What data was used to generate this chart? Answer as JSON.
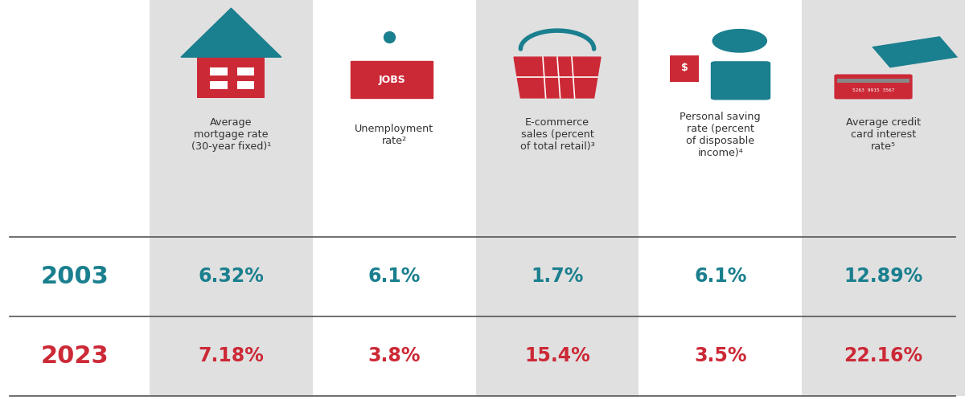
{
  "columns": [
    {
      "header": "Average\nmortgage rate\n(30-year fixed)¹",
      "val_2003": "6.32%",
      "val_2023": "7.18%",
      "col_shaded": true
    },
    {
      "header": "Unemployment\nrate²",
      "val_2003": "6.1%",
      "val_2023": "3.8%",
      "col_shaded": false
    },
    {
      "header": "E-commerce\nsales (percent\nof total retail)³",
      "val_2003": "1.7%",
      "val_2023": "15.4%",
      "col_shaded": true
    },
    {
      "header": "Personal saving\nrate (percent\nof disposable\nincome)⁴",
      "val_2003": "6.1%",
      "val_2023": "3.5%",
      "col_shaded": false
    },
    {
      "header": "Average credit\ncard interest\nrate⁵",
      "val_2003": "12.89%",
      "val_2023": "22.16%",
      "col_shaded": true
    }
  ],
  "year_2003": "2003",
  "year_2023": "2023",
  "color_2003": "#1a7f8e",
  "color_2023": "#cc2936",
  "shaded_bg": "#e0e0e0",
  "white_bg": "#ffffff",
  "header_text_color": "#333333",
  "divider_color": "#555555"
}
